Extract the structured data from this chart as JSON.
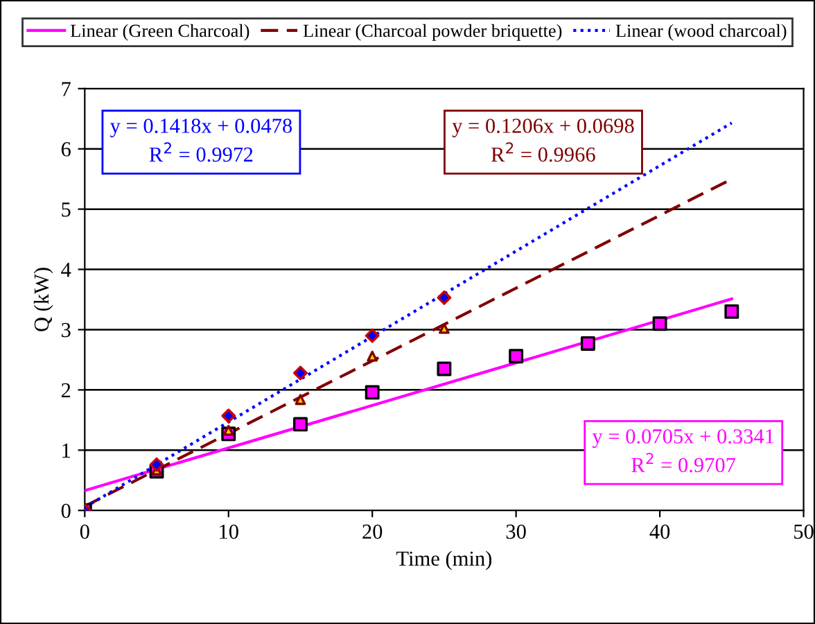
{
  "chart_data": {
    "type": "scatter",
    "xlabel": "Time (min)",
    "ylabel": "Q (kW)",
    "xlim": [
      0,
      50
    ],
    "ylim": [
      0,
      7
    ],
    "xticks": [
      0,
      10,
      20,
      30,
      40,
      50
    ],
    "yticks": [
      0,
      1,
      2,
      3,
      4,
      5,
      6,
      7
    ],
    "grid": "y",
    "legend": "top",
    "series": [
      {
        "color": "#ff00ff",
        "marker": "square",
        "x": [
          0,
          5,
          10,
          15,
          20,
          25,
          30,
          35,
          40,
          45
        ],
        "values": [
          0,
          0.65,
          1.27,
          1.43,
          1.96,
          2.35,
          2.56,
          2.77,
          3.1,
          3.3
        ]
      },
      {
        "color": "#ffcc00",
        "marker": "triangle",
        "x": [
          0,
          5,
          10,
          15,
          20,
          25
        ],
        "values": [
          0,
          0.67,
          1.33,
          1.84,
          2.56,
          3.02
        ]
      },
      {
        "color": "#0000ff",
        "marker": "diamond",
        "x": [
          0,
          5,
          10,
          15,
          20,
          25
        ],
        "values": [
          0,
          0.76,
          1.57,
          2.28,
          2.9,
          3.53
        ]
      },
      {
        "type": "line",
        "name": "Linear (Green Charcoal)",
        "color": "#ff00ff",
        "line_style": "solid",
        "x": [
          0,
          45
        ],
        "values": [
          0.33,
          3.51
        ]
      },
      {
        "type": "line",
        "name": "Linear (Charcoal powder briquette)",
        "color": "#800000",
        "line_style": "dashed",
        "x": [
          0,
          45
        ],
        "values": [
          0.07,
          5.5
        ]
      },
      {
        "type": "line",
        "name": "Linear (wood charcoal)",
        "color": "#0000ff",
        "line_style": "dotted",
        "x": [
          0,
          45
        ],
        "values": [
          0.05,
          6.43
        ]
      }
    ],
    "annotations": [
      "y = 0.0705x + 0.3341\nR$^{2}$ = 0.9707",
      "y = 0.1206x + 0.0698\nR$^{2}$ = 0.9966",
      "y = 0.1418x + 0.0478\nR$^{2}$ = 0.9972"
    ]
  }
}
